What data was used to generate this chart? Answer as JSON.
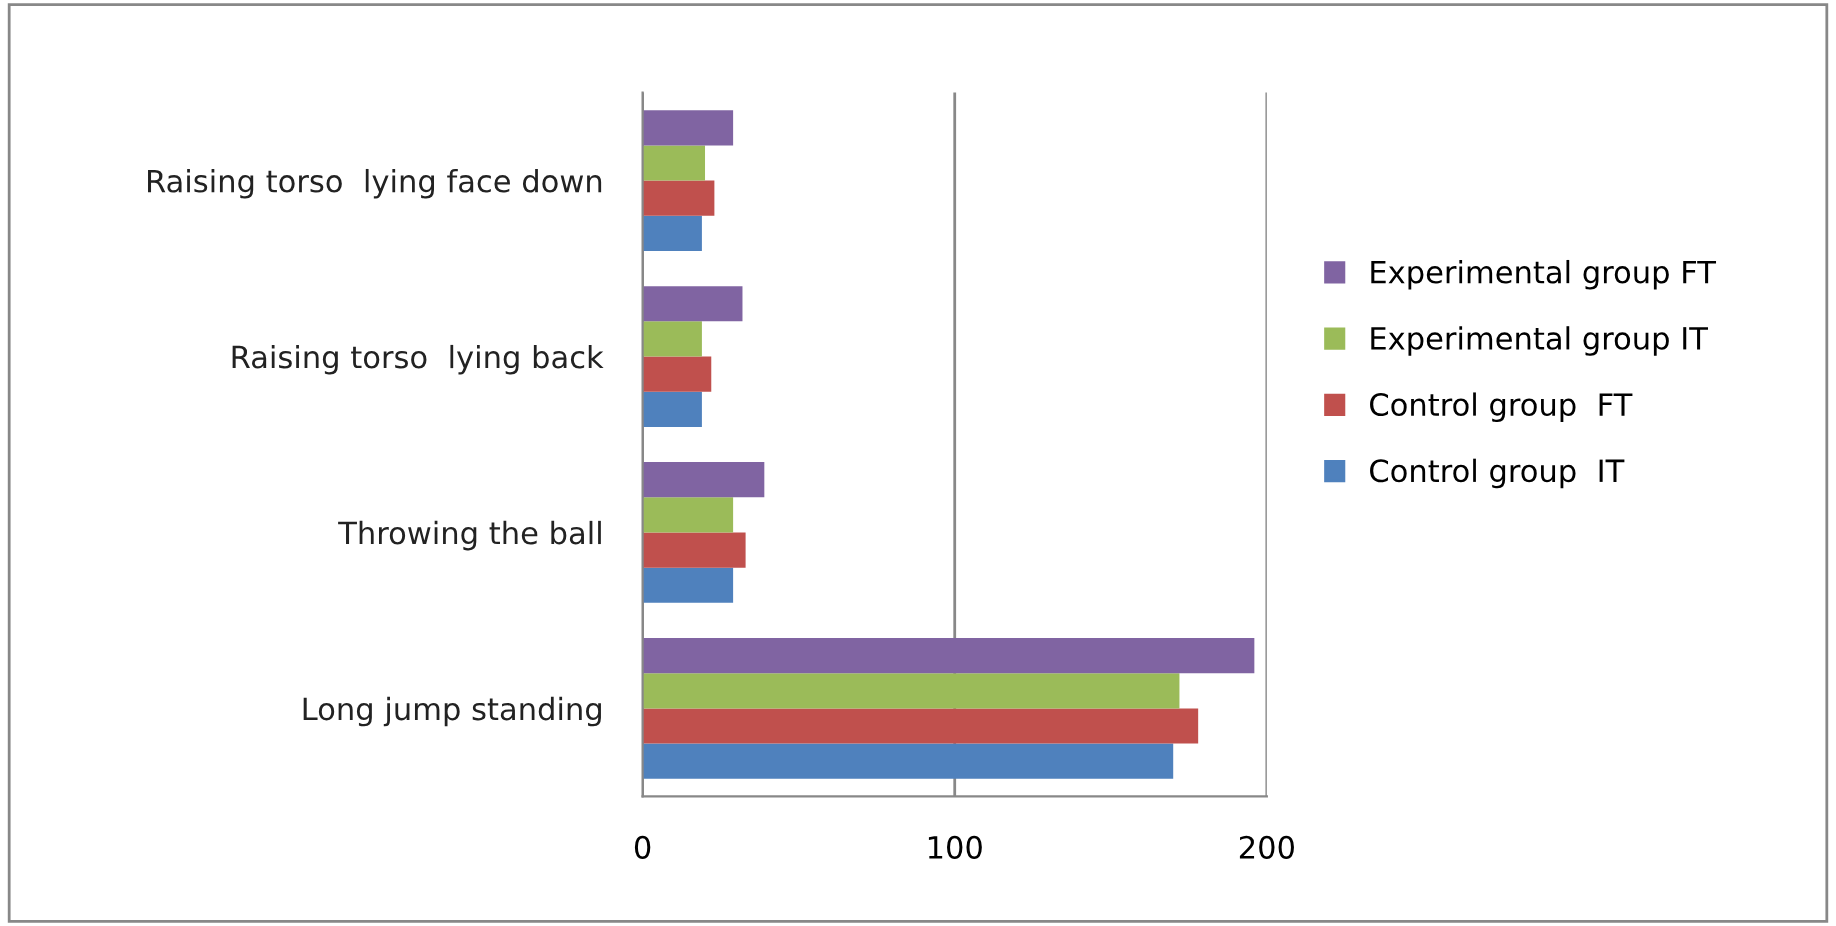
{
  "chart_data": {
    "type": "bar",
    "orientation": "horizontal",
    "categories": [
      "Raising torso  lying face down",
      "Raising torso  lying back",
      "Throwing the ball",
      "Long jump standing"
    ],
    "series": [
      {
        "name": "Control group  IT",
        "color": "#4f81bd",
        "values": [
          19,
          19,
          29,
          170
        ]
      },
      {
        "name": "Control group  FT",
        "color": "#c0504d",
        "values": [
          23,
          22,
          33,
          178
        ]
      },
      {
        "name": "Experimental group IT",
        "color": "#9bbb59",
        "values": [
          20,
          19,
          29,
          172
        ]
      },
      {
        "name": "Experimental group FT",
        "color": "#8064a2",
        "values": [
          29,
          32,
          39,
          196
        ]
      }
    ],
    "xlim": [
      0,
      200
    ],
    "xticks": [
      0,
      100,
      200
    ],
    "grid": "x",
    "legend": "right"
  }
}
